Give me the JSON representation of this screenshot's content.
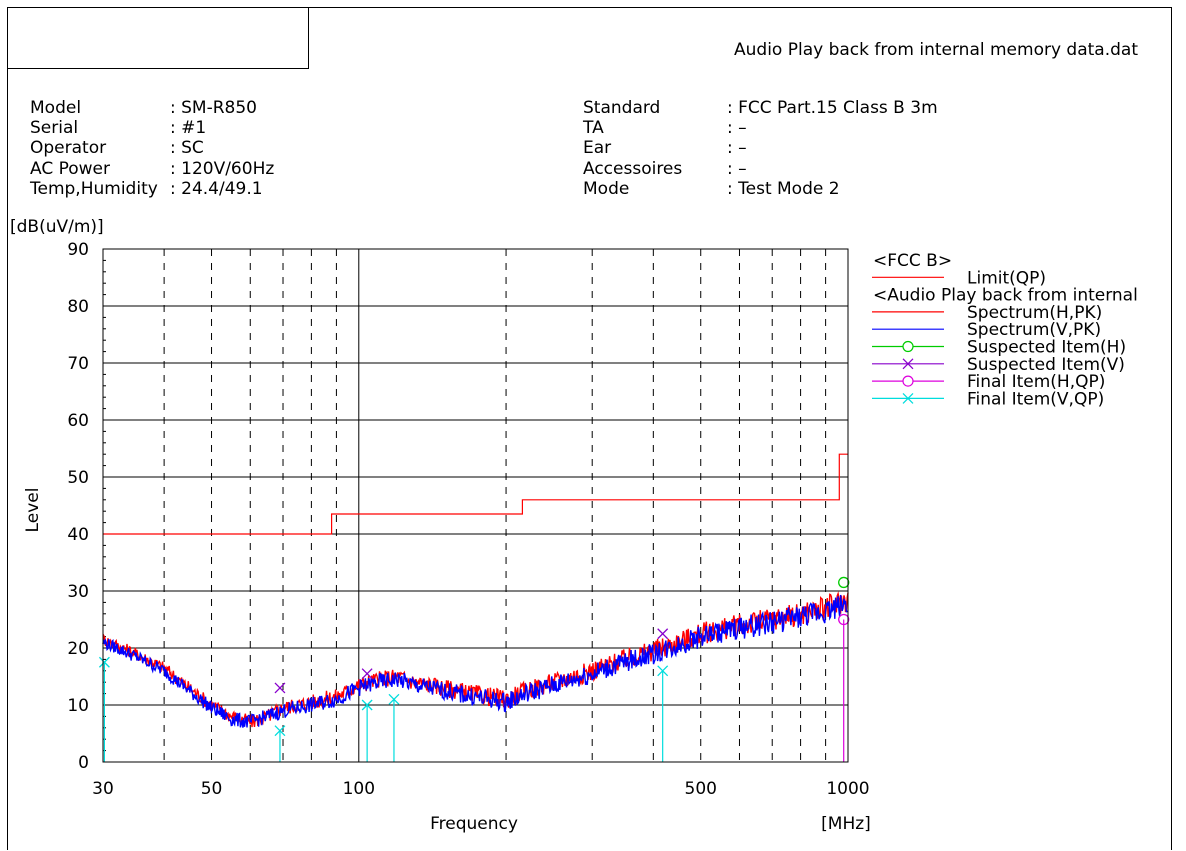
{
  "report": {
    "title": "Audio Play back from internal memory data.dat",
    "info_left": [
      {
        "key": "Model",
        "value": ": SM-R850"
      },
      {
        "key": "Serial",
        "value": ": #1"
      },
      {
        "key": "Operator",
        "value": ": SC"
      },
      {
        "key": "AC Power",
        "value": ": 120V/60Hz"
      },
      {
        "key": "Temp,Humidity",
        "value": ": 24.4/49.1"
      }
    ],
    "info_right": [
      {
        "key": "Standard",
        "value": ": FCC Part.15 Class B 3m"
      },
      {
        "key": "TA",
        "value": ": –"
      },
      {
        "key": "Ear",
        "value": ": –"
      },
      {
        "key": "Accessoires",
        "value": ": –"
      },
      {
        "key": "Mode",
        "value": ": Test Mode 2"
      }
    ]
  },
  "chart_data": {
    "type": "line",
    "ylabel": "Level",
    "yunit": "[dB(uV/m)]",
    "xlabel": "Frequency",
    "xunit": "[MHz]",
    "xscale": "log",
    "xlim": [
      30,
      1000
    ],
    "ylim": [
      0,
      90
    ],
    "grid": true,
    "legend_position": "right",
    "x_tick_labels": [
      "30",
      "50",
      "100",
      "500",
      "1000"
    ],
    "x_tick_values": [
      30,
      50,
      100,
      500,
      1000
    ],
    "y_tick_values": [
      0,
      10,
      20,
      30,
      40,
      50,
      60,
      70,
      80,
      90
    ],
    "legend": [
      {
        "kind": "header",
        "label": "<FCC B>"
      },
      {
        "kind": "line",
        "marker": "none",
        "color": "#ff0000",
        "label": "Limit(QP)"
      },
      {
        "kind": "header",
        "label": "<Audio Play back from internal"
      },
      {
        "kind": "line",
        "marker": "none",
        "color": "#ff0000",
        "label": "Spectrum(H,PK)"
      },
      {
        "kind": "line",
        "marker": "none",
        "color": "#0000ff",
        "label": "Spectrum(V,PK)"
      },
      {
        "kind": "line",
        "marker": "circle",
        "color": "#00cc00",
        "label": "Suspected Item(H)"
      },
      {
        "kind": "line",
        "marker": "x",
        "color": "#8800cc",
        "label": "Suspected Item(V)"
      },
      {
        "kind": "line",
        "marker": "circle",
        "color": "#dd00dd",
        "label": "Final Item(H,QP)"
      },
      {
        "kind": "line",
        "marker": "x",
        "color": "#00dddd",
        "label": "Final Item(V,QP)"
      }
    ],
    "series": [
      {
        "name": "Limit(QP)",
        "color": "#ff0000",
        "step": true,
        "x": [
          30,
          88,
          88,
          216,
          216,
          960,
          960,
          1000
        ],
        "y": [
          40,
          40,
          43.5,
          43.5,
          46,
          46,
          54,
          54
        ]
      },
      {
        "name": "Spectrum(H,PK)",
        "color": "#ff0000",
        "x": [
          30,
          32,
          35,
          40,
          45,
          50,
          55,
          60,
          65,
          70,
          75,
          80,
          90,
          100,
          110,
          120,
          130,
          150,
          170,
          200,
          220,
          250,
          300,
          350,
          400,
          450,
          500,
          600,
          700,
          800,
          900,
          1000
        ],
        "y": [
          21.5,
          20.5,
          19,
          16.5,
          13,
          10,
          8,
          7,
          8,
          9.5,
          10,
          10.5,
          11.5,
          13.5,
          14.5,
          15,
          14,
          13,
          12,
          11,
          12.5,
          14,
          16,
          18,
          19.5,
          21,
          22.5,
          24,
          25,
          26,
          27,
          28.5
        ]
      },
      {
        "name": "Spectrum(V,PK)",
        "color": "#0000ff",
        "x": [
          30,
          32,
          35,
          40,
          45,
          50,
          55,
          60,
          65,
          70,
          75,
          80,
          90,
          100,
          110,
          120,
          130,
          150,
          170,
          200,
          220,
          250,
          300,
          350,
          400,
          450,
          500,
          600,
          700,
          800,
          900,
          1000
        ],
        "y": [
          21,
          20,
          18.5,
          16,
          12.5,
          9.5,
          7.5,
          7,
          8,
          9,
          9.5,
          10,
          11,
          13,
          14,
          14.5,
          13.5,
          12.5,
          11.5,
          10.5,
          12,
          13.5,
          15.5,
          17.5,
          19,
          20.5,
          22,
          23.5,
          24.5,
          25.5,
          26.5,
          28
        ]
      },
      {
        "name": "Suspected Item(H)",
        "color": "#00cc00",
        "marker": "circle",
        "x": [
          980
        ],
        "y": [
          31.5
        ]
      },
      {
        "name": "Suspected Item(V)",
        "color": "#8800cc",
        "marker": "x",
        "x": [
          69,
          104,
          418
        ],
        "y": [
          13,
          15.5,
          22.5
        ]
      },
      {
        "name": "Final Item(H,QP)",
        "color": "#dd00dd",
        "marker": "circle",
        "x": [
          980
        ],
        "y": [
          25
        ]
      },
      {
        "name": "Final Item(V,QP)",
        "color": "#00dddd",
        "marker": "x",
        "x": [
          30.2,
          69,
          104,
          118,
          418
        ],
        "y": [
          17.5,
          5.5,
          10,
          11,
          16
        ]
      }
    ]
  }
}
